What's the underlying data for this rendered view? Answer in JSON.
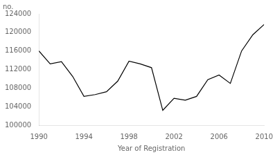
{
  "chart_data": {
    "type": "line",
    "x": [
      1990,
      1991,
      1992,
      1993,
      1994,
      1995,
      1996,
      1997,
      1998,
      1999,
      2000,
      2001,
      2002,
      2003,
      2004,
      2005,
      2006,
      2007,
      2008,
      2009,
      2010
    ],
    "values": [
      116000,
      113200,
      113700,
      110500,
      106200,
      106600,
      107200,
      109500,
      113800,
      113200,
      112400,
      103200,
      105800,
      105400,
      106200,
      109800,
      110800,
      109000,
      116000,
      119500,
      121700
    ],
    "color": "#000000",
    "xlabel": "Year of Registration",
    "ylabel": "no.",
    "xlim": [
      1990,
      2010
    ],
    "ylim": [
      100000,
      124000
    ],
    "xticks": [
      1990,
      1994,
      1998,
      2002,
      2006,
      2010
    ],
    "yticks": [
      100000,
      104000,
      108000,
      112000,
      116000,
      120000,
      124000
    ],
    "grid": false
  }
}
